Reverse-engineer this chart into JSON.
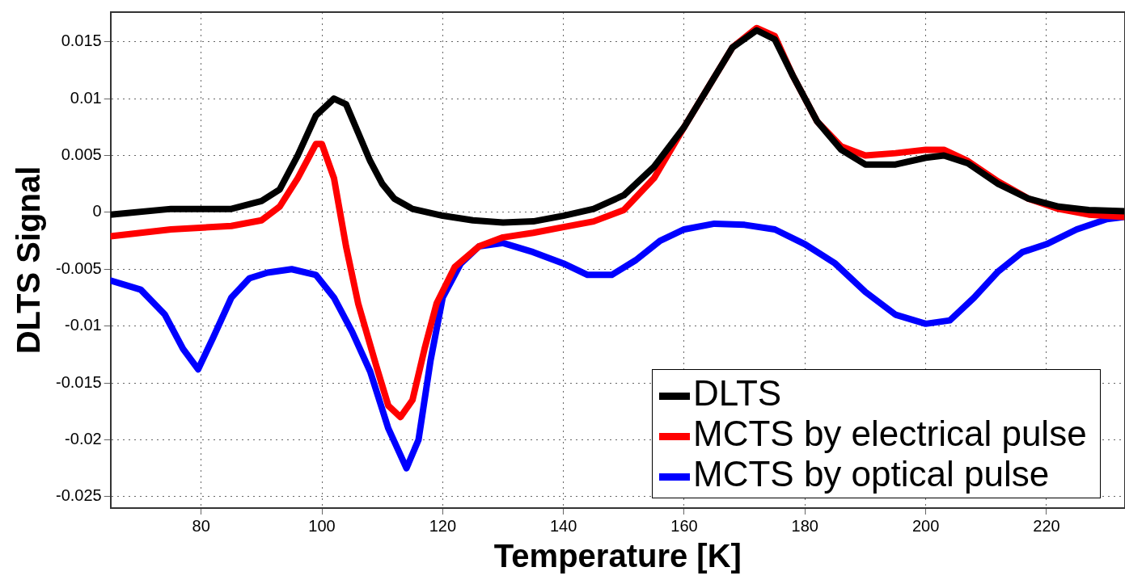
{
  "chart_data": {
    "type": "line",
    "xlabel": "Temperature [K]",
    "ylabel": "DLTS Signal",
    "xlim": [
      65,
      233
    ],
    "xticks": [
      80,
      100,
      120,
      140,
      160,
      180,
      200,
      220
    ],
    "ylim": [
      -0.026,
      0.0176
    ],
    "yticks": [
      -0.025,
      -0.02,
      -0.015,
      -0.01,
      -0.005,
      0,
      0.005,
      0.01,
      0.015
    ],
    "grid": true,
    "legend": "bottom right",
    "marker": "none",
    "line_style": "solid",
    "series": [
      {
        "name": "DLTS",
        "color": "#000000",
        "x": [
          65,
          75,
          85,
          90,
          93,
          96,
          99,
          102,
          104,
          106,
          108,
          110,
          112,
          115,
          120,
          125,
          130,
          135,
          140,
          145,
          150,
          155,
          160,
          164,
          168,
          172,
          175,
          178,
          182,
          186,
          190,
          195,
          200,
          203,
          207,
          212,
          217,
          222,
          227,
          233
        ],
        "values": [
          -0.0002,
          0.0003,
          0.0003,
          0.001,
          0.002,
          0.005,
          0.0085,
          0.01,
          0.0095,
          0.007,
          0.0045,
          0.0025,
          0.0012,
          0.0003,
          -0.0003,
          -0.0007,
          -0.0009,
          -0.0008,
          -0.0003,
          0.0003,
          0.0015,
          0.004,
          0.0075,
          0.011,
          0.0145,
          0.016,
          0.0152,
          0.012,
          0.008,
          0.0055,
          0.0042,
          0.0042,
          0.0048,
          0.005,
          0.0043,
          0.0025,
          0.0012,
          0.0005,
          0.0002,
          0.0001
        ]
      },
      {
        "name": "MCTS by electrical pulse",
        "color": "#ff0000",
        "x": [
          65,
          75,
          85,
          90,
          93,
          96,
          99,
          100,
          102,
          104,
          106,
          109,
          111,
          113,
          115,
          117,
          119,
          122,
          126,
          130,
          135,
          140,
          145,
          150,
          155,
          160,
          164,
          168,
          172,
          175,
          178,
          182,
          186,
          190,
          195,
          200,
          203,
          207,
          212,
          217,
          222,
          227,
          233
        ],
        "values": [
          -0.0021,
          -0.0015,
          -0.0012,
          -0.0007,
          0.0005,
          0.003,
          0.006,
          0.006,
          0.003,
          -0.003,
          -0.008,
          -0.0135,
          -0.017,
          -0.018,
          -0.0165,
          -0.012,
          -0.008,
          -0.0048,
          -0.003,
          -0.0022,
          -0.0018,
          -0.0013,
          -0.0008,
          0.0002,
          0.003,
          0.0075,
          0.011,
          0.0145,
          0.0162,
          0.0155,
          0.012,
          0.008,
          0.0058,
          0.005,
          0.0052,
          0.0055,
          0.0055,
          0.0045,
          0.0027,
          0.0012,
          0.0003,
          -0.0002,
          -0.0004
        ]
      },
      {
        "name": "MCTS by optical pulse",
        "color": "#0000ff",
        "x": [
          65,
          70,
          74,
          77,
          79.5,
          82,
          85,
          88,
          91,
          95,
          99,
          102,
          105,
          108,
          111,
          114,
          116,
          118,
          120,
          123,
          126,
          130,
          135,
          140,
          144,
          148,
          152,
          156,
          160,
          165,
          170,
          175,
          180,
          185,
          190,
          195,
          200,
          204,
          208,
          212,
          216,
          220,
          225,
          230,
          233
        ],
        "values": [
          -0.006,
          -0.0068,
          -0.009,
          -0.012,
          -0.0138,
          -0.011,
          -0.0075,
          -0.0058,
          -0.0053,
          -0.005,
          -0.0055,
          -0.0075,
          -0.0105,
          -0.014,
          -0.019,
          -0.0225,
          -0.02,
          -0.013,
          -0.0075,
          -0.0045,
          -0.003,
          -0.0027,
          -0.0035,
          -0.0045,
          -0.0055,
          -0.0055,
          -0.0042,
          -0.0025,
          -0.0015,
          -0.001,
          -0.0011,
          -0.0015,
          -0.0028,
          -0.0045,
          -0.007,
          -0.009,
          -0.0098,
          -0.0095,
          -0.0075,
          -0.0052,
          -0.0035,
          -0.0028,
          -0.0015,
          -0.0006,
          -0.0004
        ]
      }
    ]
  }
}
